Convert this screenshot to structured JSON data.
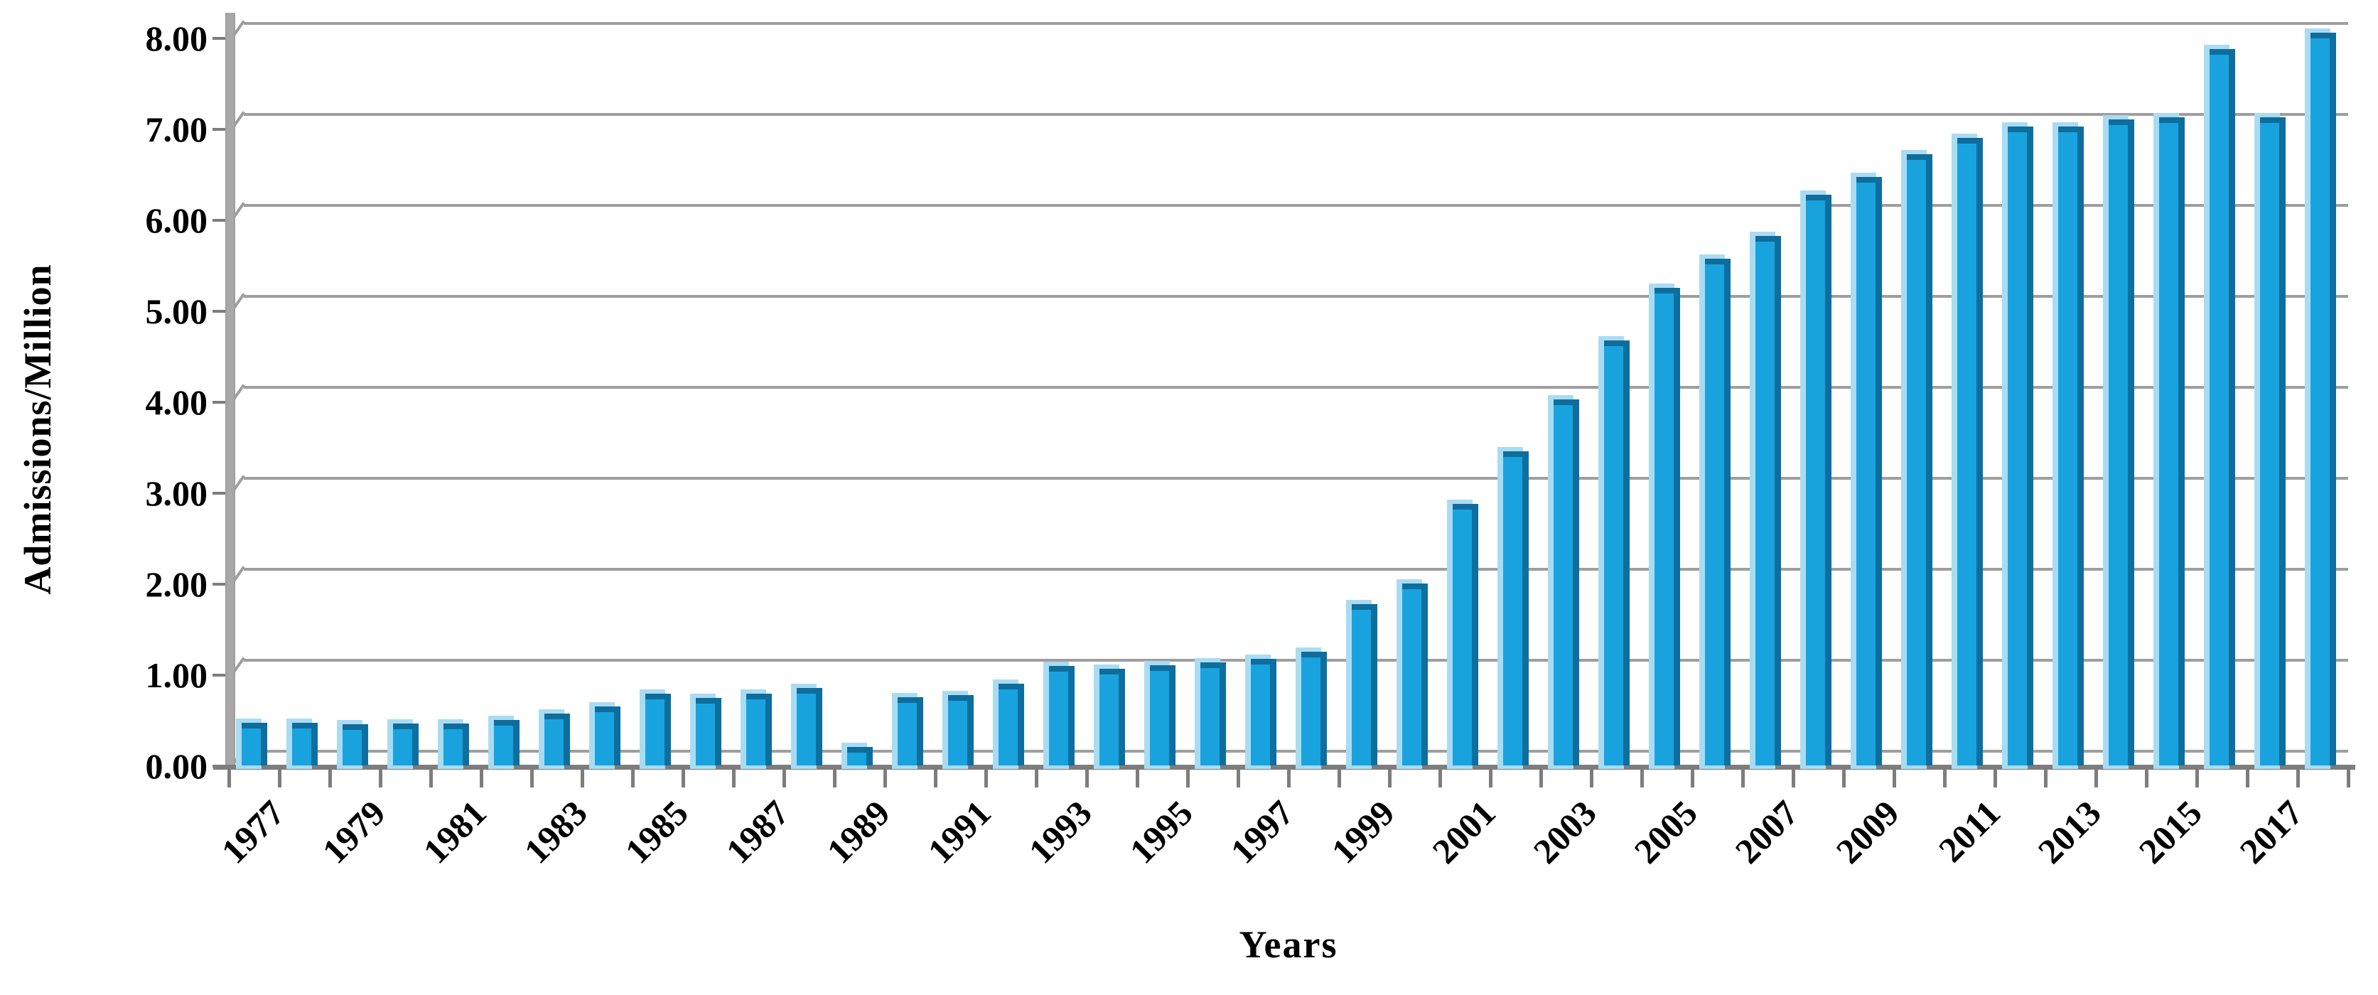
{
  "figure": {
    "y_axis": {
      "title": "Admissions/Million",
      "tick_labels": [
        "0.00",
        "1.00",
        "2.00",
        "3.00",
        "4.00",
        "5.00",
        "6.00",
        "7.00",
        "8.00"
      ],
      "min": 0,
      "max": 8,
      "step": 1
    },
    "x_axis": {
      "title": "Years",
      "shown_labels": [
        "1977",
        "1979",
        "1981",
        "1983",
        "1985",
        "1987",
        "1989",
        "1991",
        "1993",
        "1995",
        "1997",
        "1999",
        "2001",
        "2003",
        "2005",
        "2007",
        "2009",
        "2011",
        "2013",
        "2015",
        "2017"
      ]
    },
    "colors": {
      "bar_face": "#18a3df",
      "bar_side": "#0e6f9e",
      "bar_cap": "#0e6d9b",
      "bar_ghost": "#a9dcf4",
      "gridline": "#9e9e9e",
      "axis": "#7d7d7d",
      "wall": "#a8a8a8",
      "text": "#000000",
      "background": "#ffffff"
    }
  },
  "chart_data": {
    "type": "bar",
    "title": "",
    "xlabel": "Years",
    "ylabel": "Admissions/Million",
    "ylim": [
      0,
      8
    ],
    "ytick_step": 1,
    "grid": true,
    "legend": false,
    "categories": [
      1977,
      1978,
      1979,
      1980,
      1981,
      1982,
      1983,
      1984,
      1985,
      1986,
      1987,
      1988,
      1989,
      1990,
      1991,
      1992,
      1993,
      1994,
      1995,
      1996,
      1997,
      1998,
      1999,
      2000,
      2001,
      2002,
      2003,
      2004,
      2005,
      2006,
      2007,
      2008,
      2009,
      2010,
      2011,
      2012,
      2013,
      2014,
      2015,
      2016,
      2017,
      2018
    ],
    "values": [
      0.3,
      0.3,
      0.28,
      0.29,
      0.29,
      0.33,
      0.4,
      0.48,
      0.62,
      0.57,
      0.62,
      0.68,
      0.03,
      0.58,
      0.6,
      0.73,
      0.92,
      0.89,
      0.93,
      0.96,
      1.0,
      1.08,
      1.6,
      1.83,
      2.7,
      3.28,
      3.85,
      4.5,
      5.08,
      5.4,
      5.65,
      6.1,
      6.3,
      6.55,
      6.73,
      6.85,
      6.85,
      6.93,
      6.95,
      7.7,
      6.95,
      7.88
    ],
    "label_every": 2
  }
}
